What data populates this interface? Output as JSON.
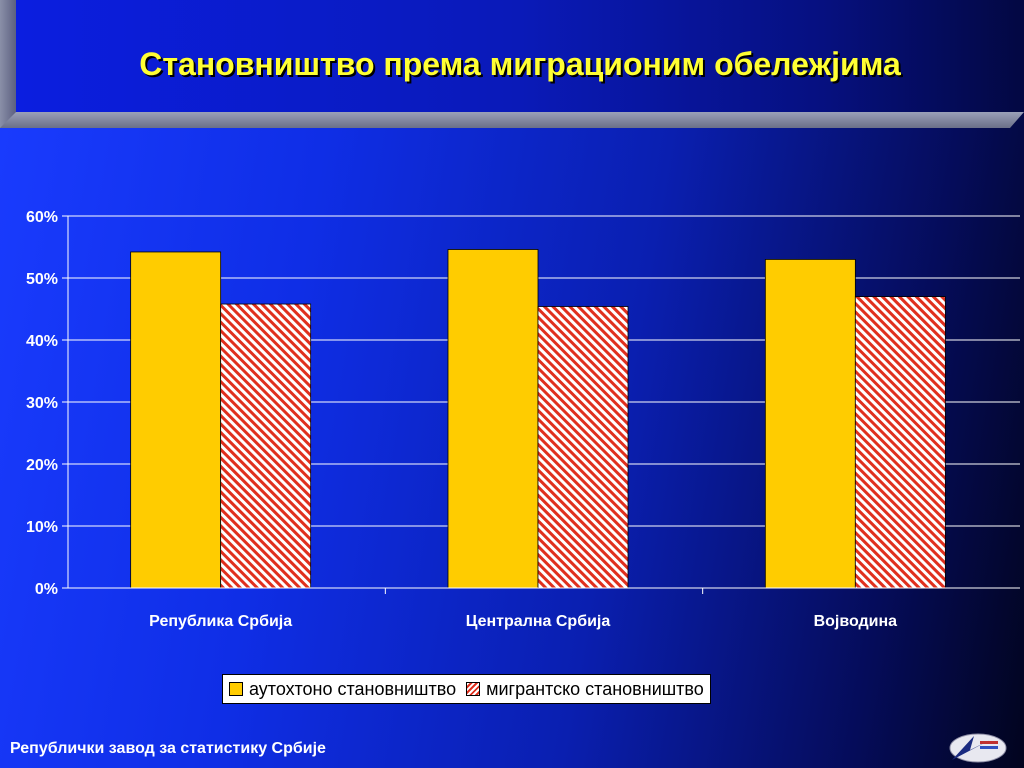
{
  "slide": {
    "title": "Становништво према миграционим обележјима",
    "footer": "Републички завод за статистику Србије"
  },
  "colors": {
    "autochthonous": "#ffcc00",
    "migrant_stripe": "#e0301e",
    "gridline": "#ffffff"
  },
  "chart_data": {
    "type": "bar",
    "categories": [
      "Република Србија",
      "Централна Србија",
      "Војводина"
    ],
    "series": [
      {
        "name": "аутохтоно становништво",
        "values": [
          54.2,
          54.6,
          53.0
        ]
      },
      {
        "name": "мигрантско становништво",
        "values": [
          45.8,
          45.4,
          47.0
        ]
      }
    ],
    "y_ticks": [
      "0%",
      "10%",
      "20%",
      "30%",
      "40%",
      "50%",
      "60%"
    ],
    "ylim": [
      0,
      60
    ],
    "grid": true,
    "legend_position": "bottom"
  }
}
